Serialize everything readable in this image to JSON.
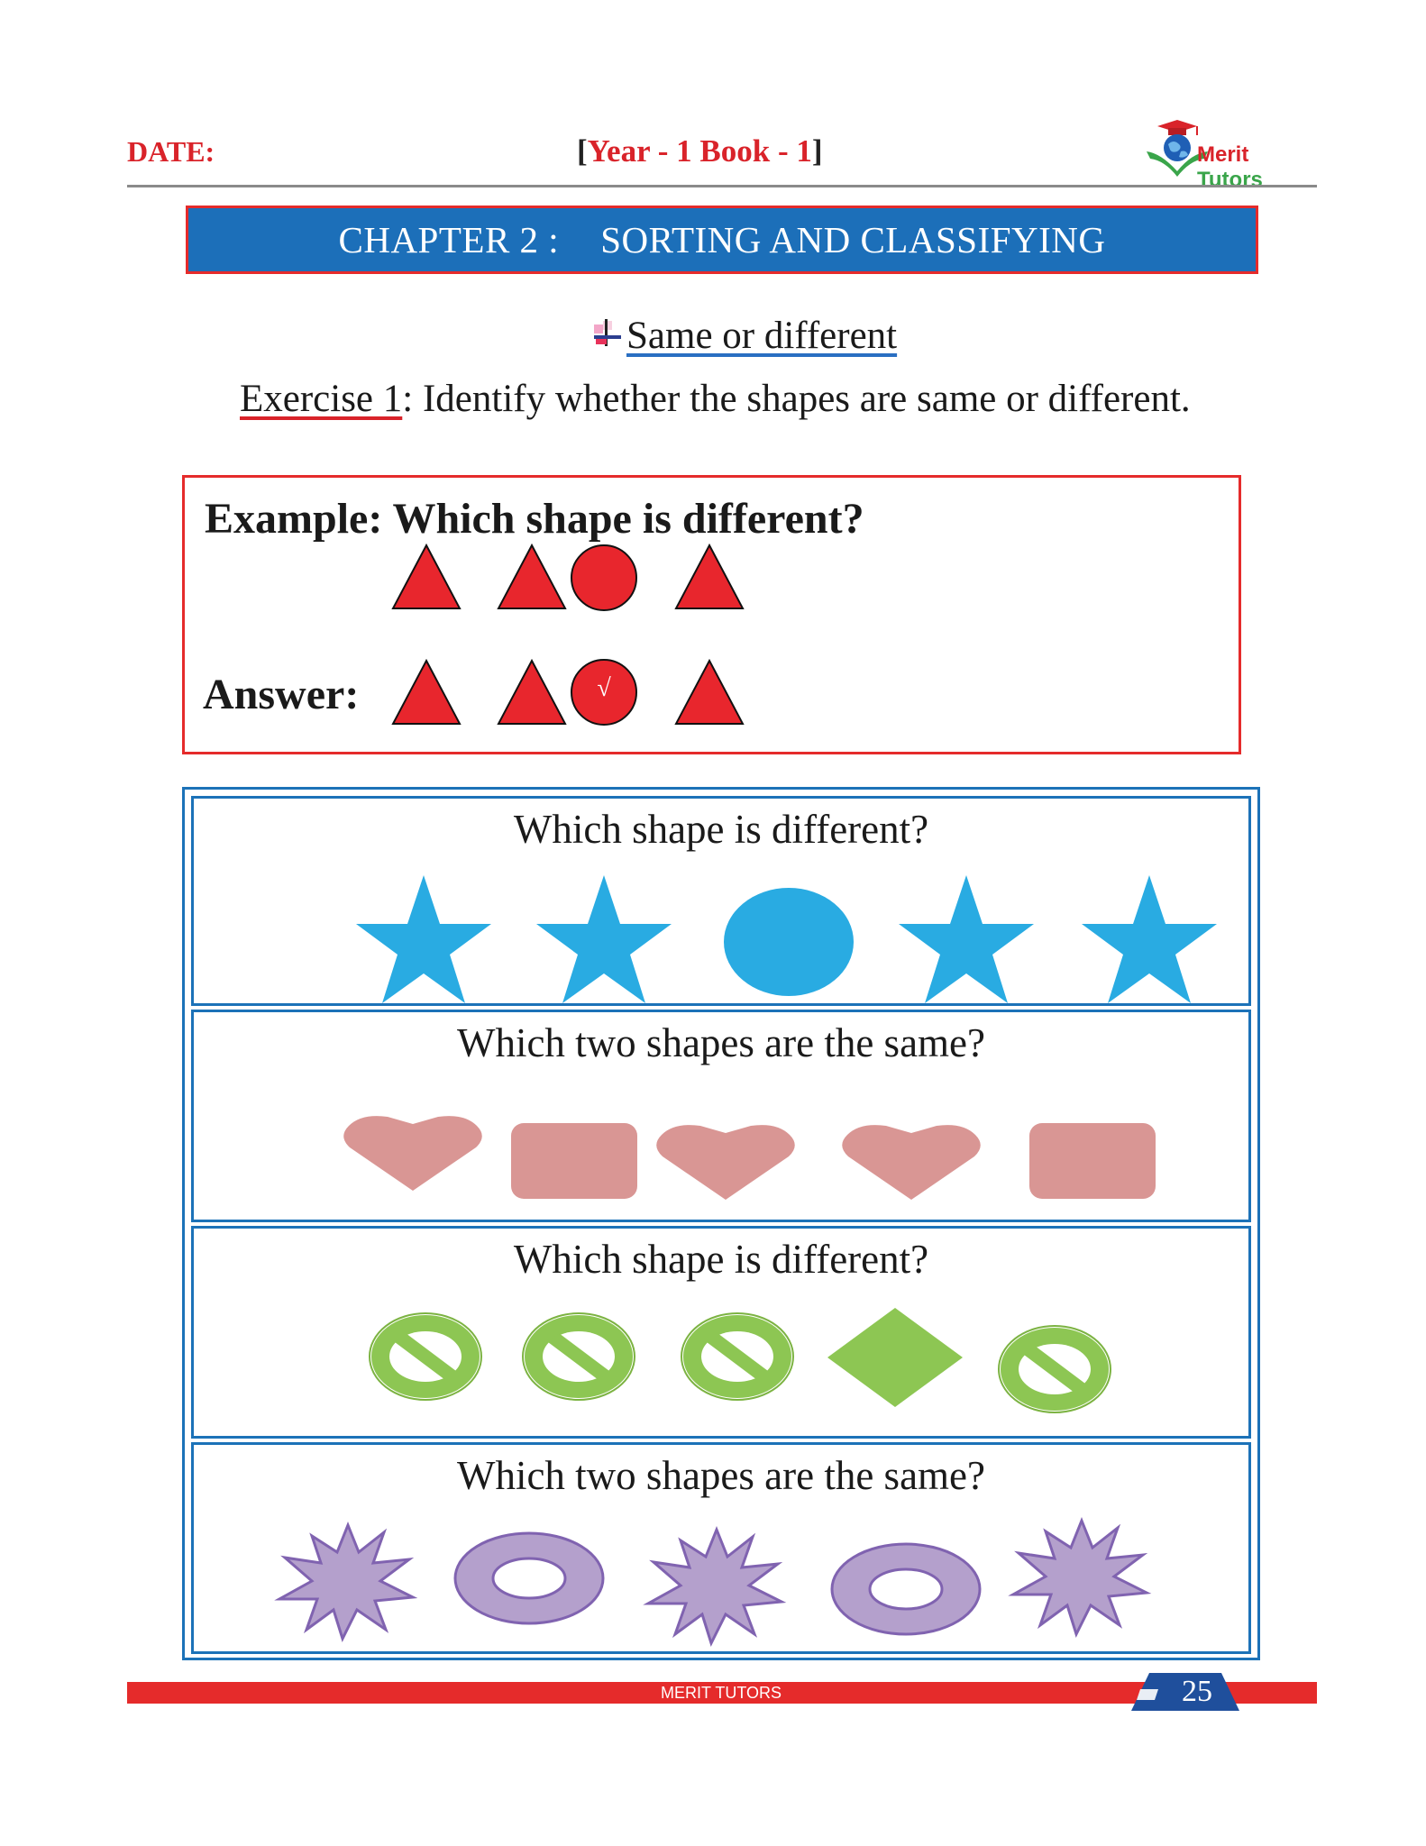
{
  "header": {
    "date_label": "DATE:",
    "bracket_open": "[",
    "book_title": "Year - 1 Book - 1",
    "bracket_close": "]",
    "logo": {
      "word1": "Merit",
      "word2": "Tutors",
      "icon": "graduation-cap-globe-book-logo"
    }
  },
  "chapter": {
    "number": "CHAPTER 2 :",
    "title": "SORTING AND CLASSIFYING"
  },
  "section": {
    "icon": "bullet-cross-icon",
    "title": "Same or different"
  },
  "exercise": {
    "label": "Exercise 1",
    "instruction": ": Identify whether the shapes are same or different."
  },
  "example": {
    "title": "Example: Which shape is different?",
    "shapes": [
      "red-triangle",
      "red-triangle",
      "red-circle",
      "red-triangle"
    ],
    "answer_label": "Answer:",
    "answer_mark": "√"
  },
  "questions": [
    {
      "text": "Which shape is different?",
      "shapes": [
        "star",
        "star",
        "circle",
        "star",
        "star"
      ],
      "color": "#29abe2"
    },
    {
      "text": "Which two shapes are the same?",
      "shapes": [
        "heart",
        "rounded-rectangle",
        "heart",
        "heart",
        "rounded-rectangle"
      ],
      "color": "#d99694"
    },
    {
      "text": "Which shape is different?",
      "shapes": [
        "prohibition-sign",
        "prohibition-sign",
        "prohibition-sign",
        "diamond",
        "prohibition-sign"
      ],
      "color": "#8dc653"
    },
    {
      "text": "Which two shapes are the same?",
      "shapes": [
        "explosion",
        "ring",
        "explosion",
        "ring",
        "explosion"
      ],
      "color": "#b4a0cc"
    }
  ],
  "footer": {
    "brand": "MERIT TUTORS",
    "page_number": "25"
  },
  "colors": {
    "accent_red": "#e52b2b",
    "accent_blue": "#1c6fb9"
  }
}
